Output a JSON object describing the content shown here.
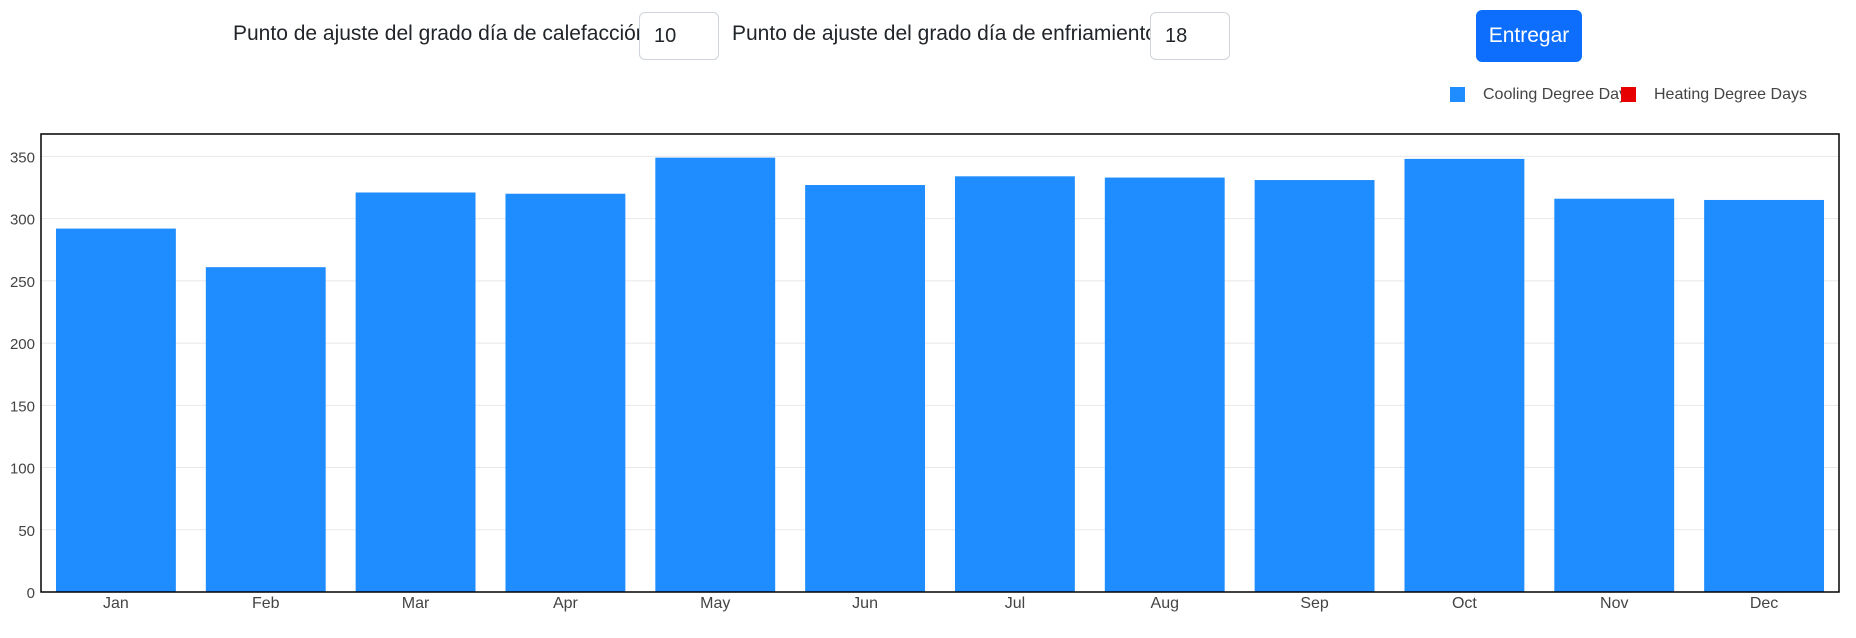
{
  "controls": {
    "hdd_label": "Punto de ajuste del grado día de calefacción (HDD)",
    "hdd_value": "10",
    "cdd_label": "Punto de ajuste del grado día de enfriamiento (CDD)",
    "cdd_value": "18",
    "submit_label": "Entregar"
  },
  "colors": {
    "cooling": "#1f8cff",
    "heating": "#e60000",
    "button": "#0d6efd"
  },
  "chart_data": {
    "type": "bar",
    "title": "",
    "xlabel": "",
    "ylabel": "",
    "categories": [
      "Jan",
      "Feb",
      "Mar",
      "Apr",
      "May",
      "Jun",
      "Jul",
      "Aug",
      "Sep",
      "Oct",
      "Nov",
      "Dec"
    ],
    "series": [
      {
        "name": "Cooling Degree Days",
        "values": [
          292,
          261,
          321,
          320,
          349,
          327,
          334,
          333,
          331,
          348,
          316,
          315
        ]
      },
      {
        "name": "Heating Degree Days",
        "values": [
          0,
          0,
          0,
          0,
          0,
          0,
          0,
          0,
          0,
          0,
          0,
          0
        ]
      }
    ],
    "ylim": [
      0,
      368
    ],
    "yticks": [
      0,
      50,
      100,
      150,
      200,
      250,
      300,
      350
    ],
    "grid": true,
    "legend_position": "top-right"
  }
}
